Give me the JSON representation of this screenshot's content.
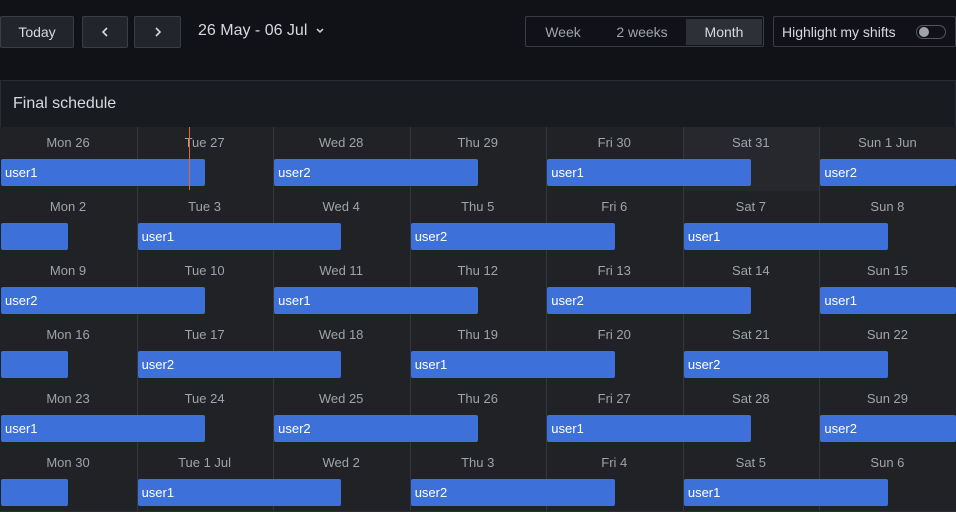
{
  "toolbar": {
    "today": "Today",
    "date_range": "26 May - 06 Jul",
    "views": [
      "Week",
      "2 weeks",
      "Month"
    ],
    "highlight": "Highlight my shifts"
  },
  "panel": {
    "title": "Final schedule",
    "weeks": [
      {
        "days": [
          "Mon 26",
          "Tue 27",
          "Wed 28",
          "Thu 29",
          "Fri 30",
          "Sat 31",
          "Sun 1 Jun"
        ],
        "shifts": [
          "user1",
          "user2",
          "user1",
          "user2"
        ]
      },
      {
        "days": [
          "Mon 2",
          "Tue 3",
          "Wed 4",
          "Thu 5",
          "Fri 6",
          "Sat 7",
          "Sun 8"
        ],
        "shifts": [
          "user1",
          "user2",
          "user1"
        ]
      },
      {
        "days": [
          "Mon 9",
          "Tue 10",
          "Wed 11",
          "Thu 12",
          "Fri 13",
          "Sat 14",
          "Sun 15"
        ],
        "shifts": [
          "user2",
          "user1",
          "user2",
          "user1"
        ]
      },
      {
        "days": [
          "Mon 16",
          "Tue 17",
          "Wed 18",
          "Thu 19",
          "Fri 20",
          "Sat 21",
          "Sun 22"
        ],
        "shifts": [
          "user2",
          "user1",
          "user2"
        ]
      },
      {
        "days": [
          "Mon 23",
          "Tue 24",
          "Wed 25",
          "Thu 26",
          "Fri 27",
          "Sat 28",
          "Sun 29"
        ],
        "shifts": [
          "user1",
          "user2",
          "user1",
          "user2"
        ]
      },
      {
        "days": [
          "Mon 30",
          "Tue 1 Jul",
          "Wed 2",
          "Thu 3",
          "Fri 4",
          "Sat 5",
          "Sun 6"
        ],
        "shifts": [
          "user1",
          "user2",
          "user1"
        ]
      }
    ]
  }
}
